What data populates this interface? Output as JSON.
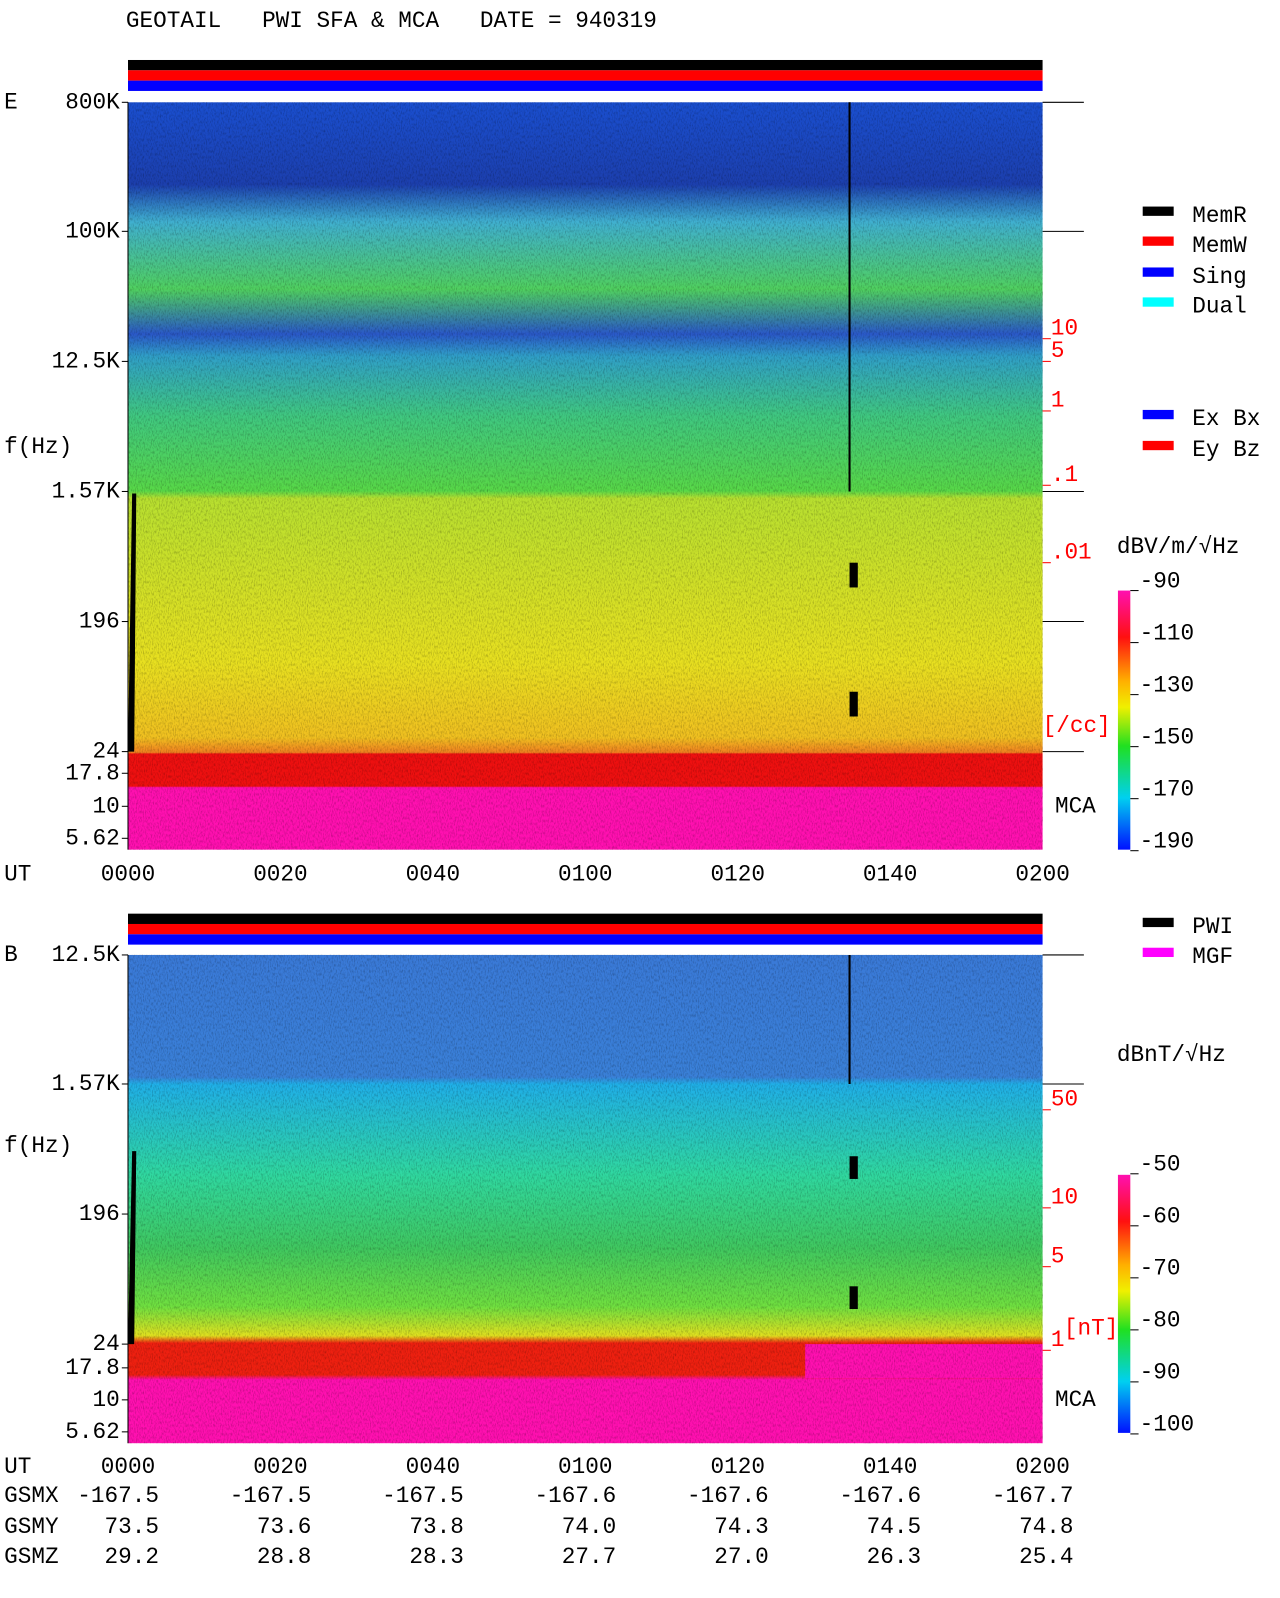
{
  "title": "GEOTAIL   PWI SFA & MCA   DATE = 940319",
  "panels": [
    {
      "label": "E",
      "ylabel": "f(Hz)",
      "yticks": [
        "800K",
        "100K",
        "12.5K",
        "1.57K",
        "196",
        "24",
        "17.8",
        "10",
        "5.62"
      ],
      "xlabel": "UT",
      "xticks": [
        "0000",
        "0020",
        "0040",
        "0100",
        "0120",
        "0140",
        "0200"
      ],
      "mca_label": "MCA",
      "density_scale": [
        "10",
        "5",
        "1",
        ".1",
        ".01"
      ],
      "density_unit": "[/cc]",
      "colorbar_unit": "dBV/m/√Hz",
      "colorbar_ticks": [
        "-90",
        "-110",
        "-130",
        "-150",
        "-170",
        "-190"
      ],
      "legend": [
        {
          "name": "MemR",
          "color": "#000000"
        },
        {
          "name": "MemW",
          "color": "#ff0000"
        },
        {
          "name": "Sing",
          "color": "#0000ff"
        },
        {
          "name": "Dual",
          "color": "#00ffff"
        },
        {
          "name": "Ex Bx",
          "color": "#0000ff"
        },
        {
          "name": "Ey Bz",
          "color": "#ff0000"
        }
      ]
    },
    {
      "label": "B",
      "ylabel": "f(Hz)",
      "yticks": [
        "12.5K",
        "1.57K",
        "196",
        "24",
        "17.8",
        "10",
        "5.62"
      ],
      "xlabel": "UT",
      "xticks": [
        "0000",
        "0020",
        "0040",
        "0100",
        "0120",
        "0140",
        "0200"
      ],
      "mca_label": "MCA",
      "density_scale": [
        "50",
        "10",
        "5",
        "1"
      ],
      "density_unit": "[nT]",
      "colorbar_unit": "dBnT/√Hz",
      "colorbar_ticks": [
        "-50",
        "-60",
        "-70",
        "-80",
        "-90",
        "-100"
      ],
      "legend": [
        {
          "name": "PWI",
          "color": "#000000"
        },
        {
          "name": "MGF",
          "color": "#ff00ff"
        }
      ]
    }
  ],
  "orbit": [
    {
      "label": "GSMX",
      "values": [
        "-167.5",
        "-167.5",
        "-167.5",
        "-167.6",
        "-167.6",
        "-167.6",
        "-167.7"
      ]
    },
    {
      "label": "GSMY",
      "values": [
        "73.5",
        "73.6",
        "73.8",
        "74.0",
        "74.3",
        "74.5",
        "74.8"
      ]
    },
    {
      "label": "GSMZ",
      "values": [
        "29.2",
        "28.8",
        "28.3",
        "27.7",
        "27.0",
        "26.3",
        "25.4"
      ]
    }
  ]
}
